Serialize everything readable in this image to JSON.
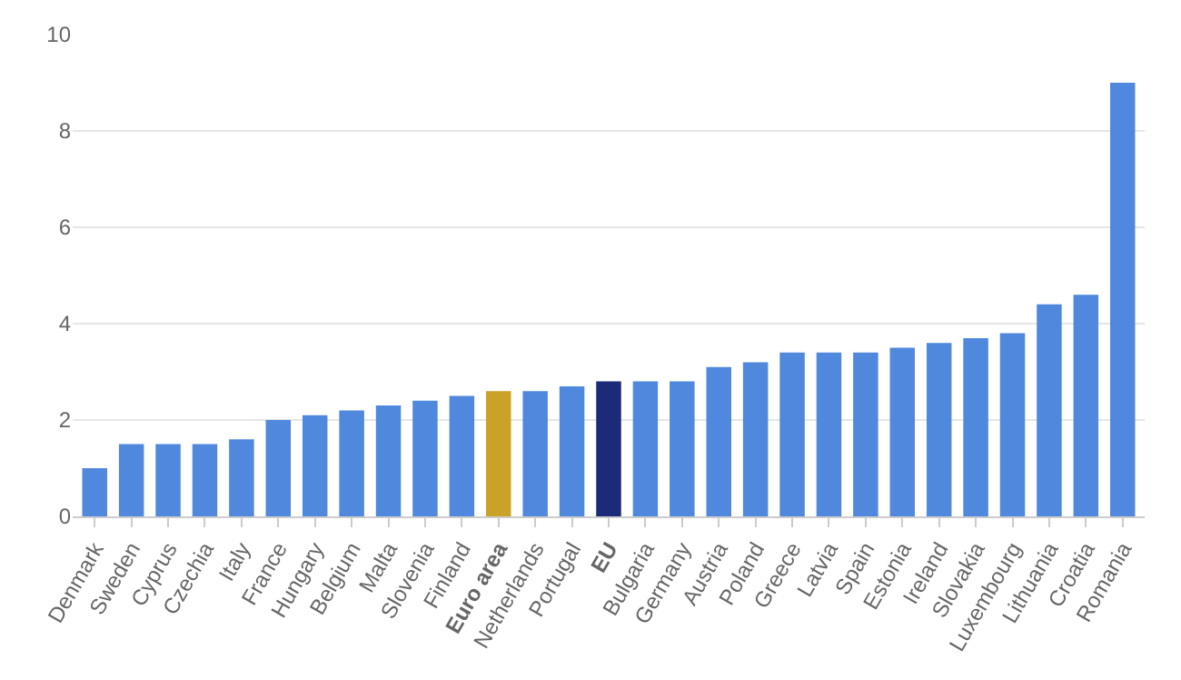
{
  "chart_data": {
    "type": "bar",
    "categories": [
      "Denmark",
      "Sweden",
      "Cyprus",
      "Czechia",
      "Italy",
      "France",
      "Hungary",
      "Belgium",
      "Malta",
      "Slovenia",
      "Finland",
      "Euro area",
      "Netherlands",
      "Portugal",
      "EU",
      "Bulgaria",
      "Germany",
      "Austria",
      "Poland",
      "Greece",
      "Latvia",
      "Spain",
      "Estonia",
      "Ireland",
      "Slovakia",
      "Luxembourg",
      "Lithuania",
      "Croatia",
      "Romania"
    ],
    "values": [
      1.0,
      1.5,
      1.5,
      1.5,
      1.6,
      2.0,
      2.1,
      2.2,
      2.3,
      2.4,
      2.5,
      2.6,
      2.6,
      2.7,
      2.8,
      2.8,
      2.8,
      3.1,
      3.2,
      3.4,
      3.4,
      3.4,
      3.5,
      3.6,
      3.7,
      3.8,
      4.4,
      4.6,
      9.0
    ],
    "colors": [
      "#4f88dd",
      "#4f88dd",
      "#4f88dd",
      "#4f88dd",
      "#4f88dd",
      "#4f88dd",
      "#4f88dd",
      "#4f88dd",
      "#4f88dd",
      "#4f88dd",
      "#4f88dd",
      "#c9a227",
      "#4f88dd",
      "#4f88dd",
      "#1c2a7a",
      "#4f88dd",
      "#4f88dd",
      "#4f88dd",
      "#4f88dd",
      "#4f88dd",
      "#4f88dd",
      "#4f88dd",
      "#4f88dd",
      "#4f88dd",
      "#4f88dd",
      "#4f88dd",
      "#4f88dd",
      "#4f88dd",
      "#4f88dd"
    ],
    "ylim": [
      0,
      10
    ],
    "yticks": [
      0,
      2,
      4,
      6,
      8,
      10
    ],
    "grid": "y",
    "legend": false
  }
}
